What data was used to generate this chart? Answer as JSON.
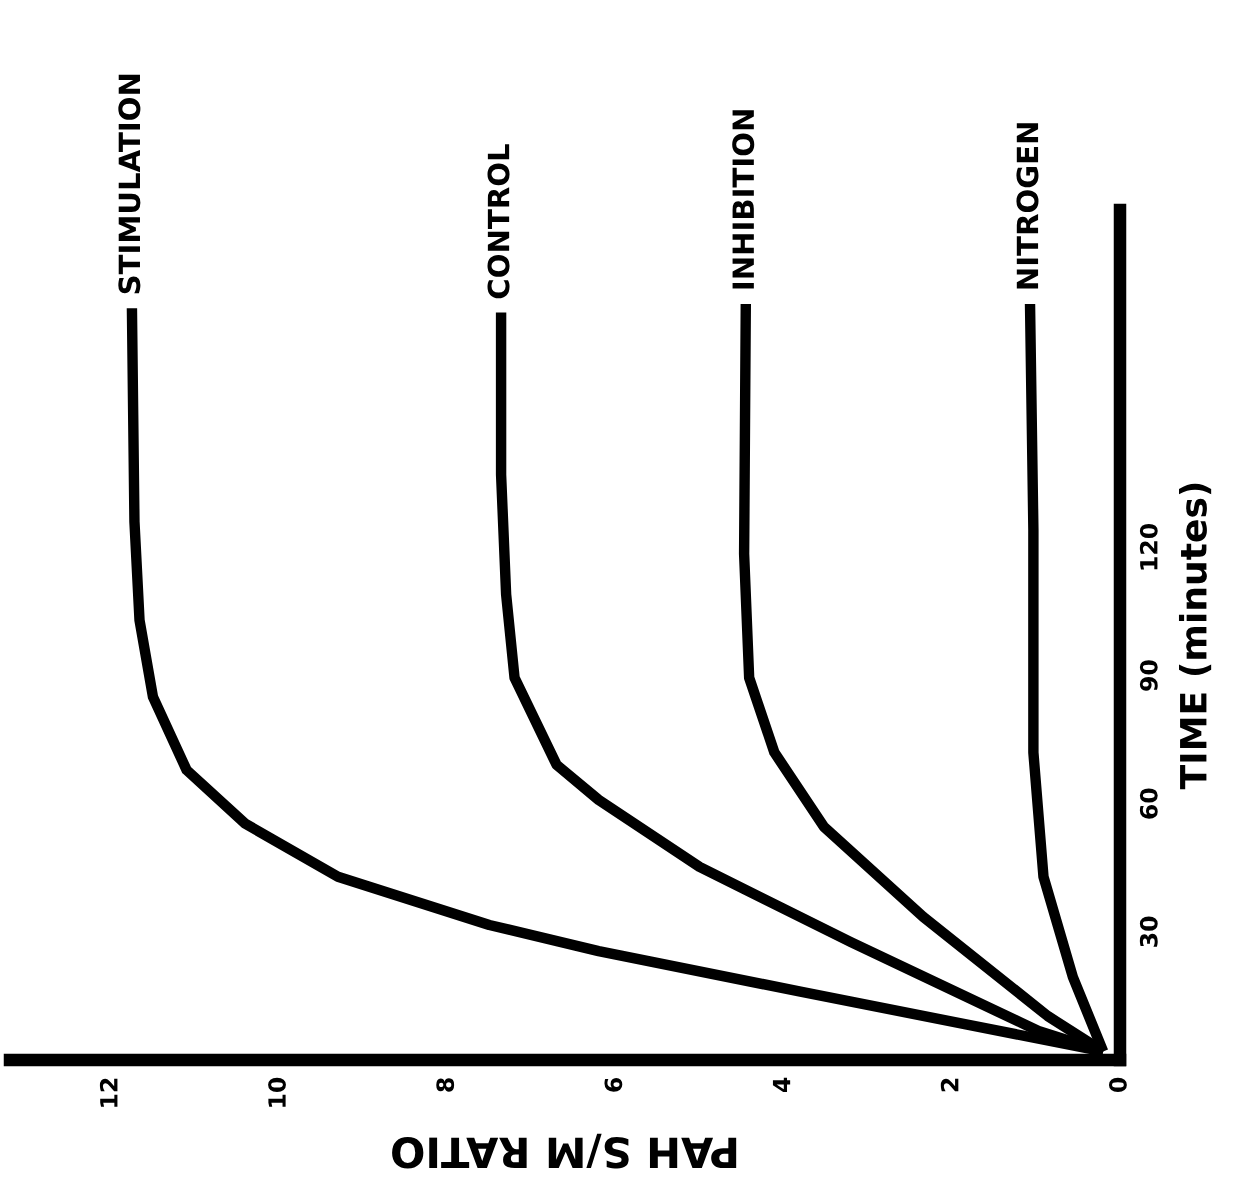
{
  "chart_data": {
    "type": "line",
    "xlabel": "PAH S/M RATIO",
    "ylabel": "TIME (minutes)",
    "xlim": [
      13.2,
      0
    ],
    "xticks": [
      0,
      2,
      4,
      6,
      8,
      10,
      12
    ],
    "ylim": [
      0,
      199
    ],
    "yticks": [
      30,
      60,
      90,
      120
    ],
    "grid": false,
    "legend": false,
    "marker": "none",
    "line_style": "solid",
    "series": [
      {
        "name": "STIMULATION",
        "color": "#000000",
        "x": [
          0.2,
          3.8,
          6.2,
          7.5,
          9.3,
          10.4,
          11.1,
          11.5,
          11.66,
          11.72,
          11.75
        ],
        "values": [
          2,
          16,
          25.5,
          31.6,
          42.9,
          55.3,
          67.9,
          85,
          103,
          126,
          176
        ]
      },
      {
        "name": "CONTROL",
        "color": "#000000",
        "x": [
          0.2,
          0.97,
          3.2,
          5.0,
          6.2,
          6.7,
          7.2,
          7.3,
          7.36,
          7.36
        ],
        "values": [
          2,
          6.8,
          27.6,
          45.2,
          60.9,
          69.1,
          89.5,
          109,
          137,
          175
        ]
      },
      {
        "name": "INHIBITION",
        "color": "#000000",
        "x": [
          0.2,
          0.86,
          2.34,
          3.52,
          4.11,
          4.41,
          4.47,
          4.45
        ],
        "values": [
          2,
          10.3,
          33.5,
          54.6,
          72,
          89.5,
          118.5,
          177
        ]
      },
      {
        "name": "NITROGEN",
        "color": "#000000",
        "x": [
          0.2,
          0.56,
          0.91,
          1.03,
          1.03,
          1.07
        ],
        "values": [
          2,
          19.4,
          42.9,
          72,
          124,
          177
        ]
      }
    ]
  }
}
